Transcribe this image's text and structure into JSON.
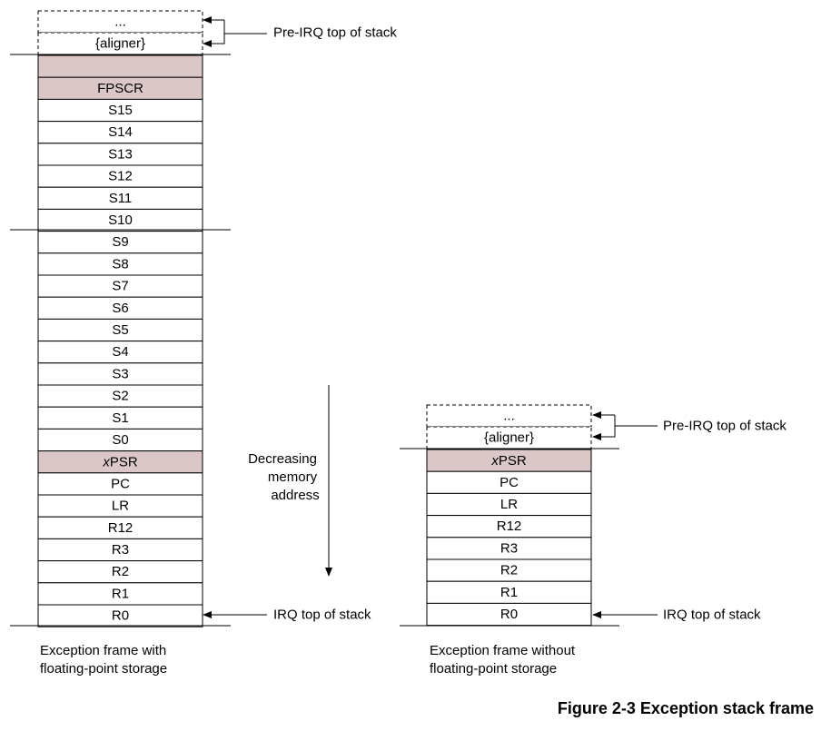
{
  "colors": {
    "highlight": "#dbc7c8",
    "plain": "#ffffff",
    "line": "#000000"
  },
  "left_stack": {
    "aligner_cells": [
      "...",
      "{aligner}"
    ],
    "cells": [
      {
        "label": "",
        "highlight": true
      },
      {
        "label": "FPSCR",
        "highlight": true
      },
      {
        "label": "S15"
      },
      {
        "label": "S14"
      },
      {
        "label": "S13"
      },
      {
        "label": "S12"
      },
      {
        "label": "S11"
      },
      {
        "label": "S10"
      },
      {
        "label": "S9"
      },
      {
        "label": "S8"
      },
      {
        "label": "S7"
      },
      {
        "label": "S6"
      },
      {
        "label": "S5"
      },
      {
        "label": "S4"
      },
      {
        "label": "S3"
      },
      {
        "label": "S2"
      },
      {
        "label": "S1"
      },
      {
        "label": "S0"
      },
      {
        "prefix": "x",
        "label": "PSR",
        "highlight": true
      },
      {
        "label": "PC"
      },
      {
        "label": "LR"
      },
      {
        "label": "R12"
      },
      {
        "label": "R3"
      },
      {
        "label": "R2"
      },
      {
        "label": "R1"
      },
      {
        "label": "R0"
      }
    ],
    "pre_irq_label": "Pre-IRQ top of stack",
    "irq_label": "IRQ top of stack",
    "caption": [
      "Exception frame with",
      "floating-point storage"
    ]
  },
  "right_stack": {
    "aligner_cells": [
      "...",
      "{aligner}"
    ],
    "cells": [
      {
        "prefix": "x",
        "label": "PSR",
        "highlight": true
      },
      {
        "label": "PC"
      },
      {
        "label": "LR"
      },
      {
        "label": "R12"
      },
      {
        "label": "R3"
      },
      {
        "label": "R2"
      },
      {
        "label": "R1"
      },
      {
        "label": "R0"
      }
    ],
    "pre_irq_label": "Pre-IRQ top of stack",
    "irq_label": "IRQ top of stack",
    "caption": [
      "Exception frame without",
      "floating-point storage"
    ]
  },
  "direction_label": [
    "Decreasing",
    "memory",
    "address"
  ],
  "figure_caption": "Figure 2-3 Exception stack frame"
}
